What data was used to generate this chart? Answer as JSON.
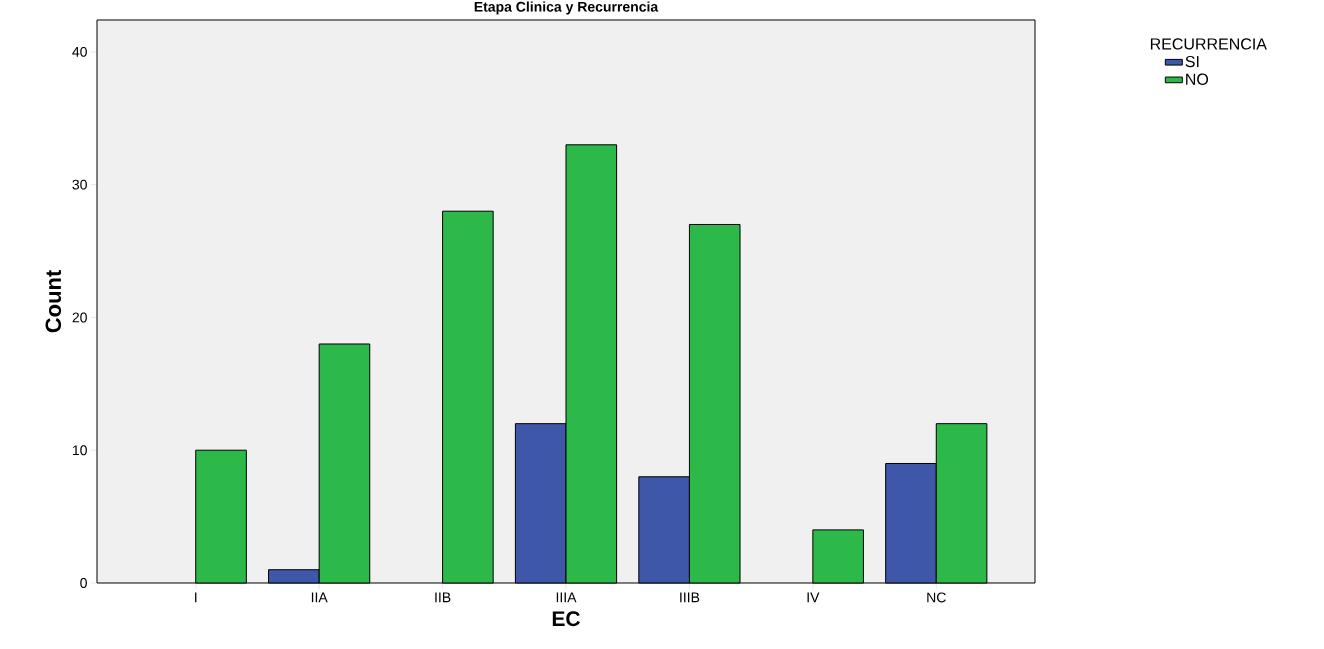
{
  "chart_data": {
    "type": "bar",
    "title": "Etapa Clinica y Recurrencia",
    "xlabel": "EC",
    "ylabel": "Count",
    "legend_title": "RECURRENCIA",
    "categories": [
      "I",
      "IIA",
      "IIB",
      "IIIA",
      "IIIB",
      "IV",
      "NC"
    ],
    "series": [
      {
        "name": "SI",
        "color": "#3f57a9",
        "values": [
          null,
          1,
          null,
          12,
          8,
          null,
          9
        ]
      },
      {
        "name": "NO",
        "color": "#2db84a",
        "values": [
          10,
          18,
          28,
          33,
          27,
          4,
          12
        ]
      }
    ],
    "ylim": [
      0,
      42.4
    ],
    "yticks": [
      0,
      10,
      20,
      30,
      40
    ],
    "grid": false,
    "legend": "top right"
  }
}
